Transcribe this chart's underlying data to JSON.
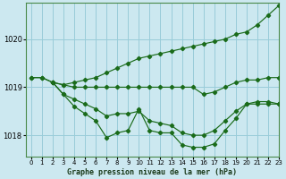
{
  "title": "Graphe pression niveau de la mer (hPa)",
  "background_color": "#cce8f0",
  "grid_color": "#99ccd9",
  "line_color": "#1a6b1a",
  "xlim": [
    -0.5,
    23
  ],
  "ylim": [
    1017.55,
    1020.75
  ],
  "yticks": [
    1018,
    1019,
    1020
  ],
  "ytick_labels": [
    "1018",
    "1019",
    "1020"
  ],
  "xticks": [
    0,
    1,
    2,
    3,
    4,
    5,
    6,
    7,
    8,
    9,
    10,
    11,
    12,
    13,
    14,
    15,
    16,
    17,
    18,
    19,
    20,
    21,
    22,
    23
  ],
  "series": {
    "line_top": {
      "x": [
        0,
        1,
        2,
        3,
        4,
        5,
        6,
        7,
        8,
        9,
        10,
        11,
        12,
        13,
        14,
        15,
        16,
        17,
        18,
        19,
        20,
        21,
        22,
        23
      ],
      "y": [
        1019.2,
        1019.2,
        1019.1,
        1019.05,
        1019.1,
        1019.15,
        1019.2,
        1019.3,
        1019.4,
        1019.5,
        1019.6,
        1019.65,
        1019.7,
        1019.75,
        1019.8,
        1019.85,
        1019.9,
        1019.95,
        1020.0,
        1020.1,
        1020.15,
        1020.3,
        1020.5,
        1020.7
      ]
    },
    "line_flat": {
      "x": [
        0,
        1,
        2,
        3,
        4,
        5,
        6,
        7,
        8,
        9,
        10,
        11,
        12,
        13,
        14,
        15,
        16,
        17,
        18,
        19,
        20,
        21,
        22,
        23
      ],
      "y": [
        1019.2,
        1019.2,
        1019.1,
        1019.05,
        1019.0,
        1019.0,
        1019.0,
        1019.0,
        1019.0,
        1019.0,
        1019.0,
        1019.0,
        1019.0,
        1019.0,
        1019.0,
        1019.0,
        1018.85,
        1018.9,
        1019.0,
        1019.1,
        1019.15,
        1019.15,
        1019.2,
        1019.2
      ]
    },
    "line_mid": {
      "x": [
        2,
        3,
        4,
        5,
        6,
        7,
        8,
        9,
        10,
        11,
        12,
        13,
        14,
        15,
        16,
        17,
        18,
        19,
        20,
        21,
        22,
        23
      ],
      "y": [
        1019.1,
        1018.85,
        1018.75,
        1018.65,
        1018.55,
        1018.4,
        1018.45,
        1018.45,
        1018.5,
        1018.3,
        1018.25,
        1018.2,
        1018.05,
        1018.0,
        1018.0,
        1018.1,
        1018.3,
        1018.5,
        1018.65,
        1018.7,
        1018.7,
        1018.65
      ]
    },
    "line_bottom": {
      "x": [
        2,
        3,
        4,
        5,
        6,
        7,
        8,
        9,
        10,
        11,
        12,
        13,
        14,
        15,
        16,
        17,
        18,
        19,
        20,
        21,
        22,
        23
      ],
      "y": [
        1019.1,
        1018.85,
        1018.6,
        1018.45,
        1018.3,
        1017.95,
        1018.05,
        1018.1,
        1018.55,
        1018.1,
        1018.05,
        1018.05,
        1017.8,
        1017.75,
        1017.75,
        1017.82,
        1018.1,
        1018.35,
        1018.65,
        1018.65,
        1018.65,
        1018.65
      ]
    }
  }
}
